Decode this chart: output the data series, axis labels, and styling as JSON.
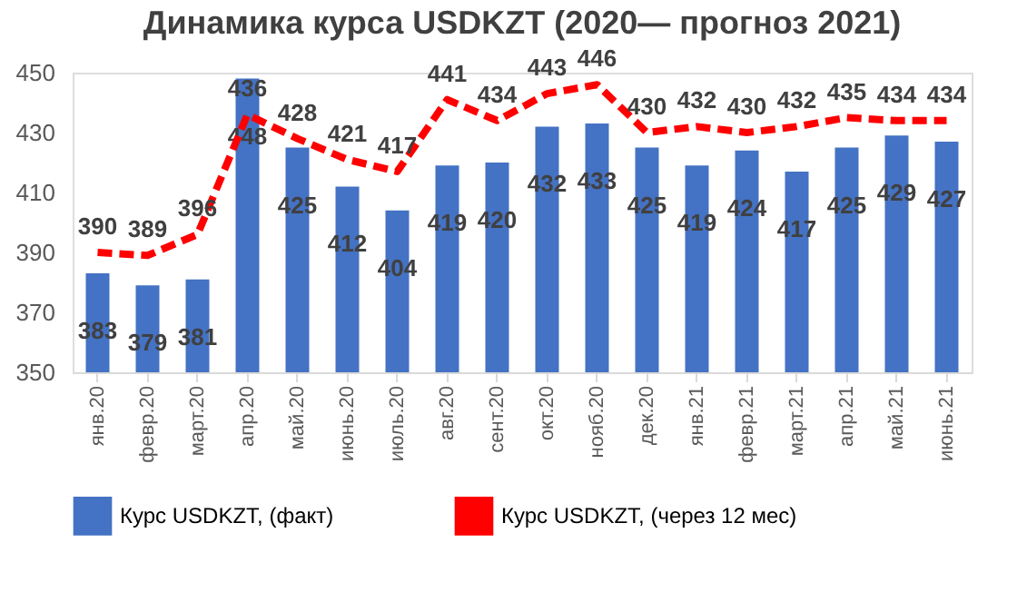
{
  "chart_data": {
    "type": "bar",
    "title": "Динамика курса USDKZT (2020— прогноз 2021)",
    "categories": [
      "янв.20",
      "февр.20",
      "март.20",
      "апр.20",
      "май.20",
      "июнь.20",
      "июль.20",
      "авг.20",
      "сент.20",
      "окт.20",
      "нояб.20",
      "дек.20",
      "янв.21",
      "февр.21",
      "март.21",
      "апр.21",
      "май.21",
      "июнь.21"
    ],
    "series": [
      {
        "name": "Курс USDKZT, (факт)",
        "type": "bar",
        "color": "#4472c4",
        "values": [
          383,
          379,
          381,
          448,
          425,
          412,
          404,
          419,
          420,
          432,
          433,
          425,
          419,
          424,
          417,
          425,
          429,
          427
        ]
      },
      {
        "name": "Курс USDKZT, (через 12 мес)",
        "type": "line",
        "color": "#ff0000",
        "line_style": "dashed",
        "values": [
          390,
          389,
          396,
          436,
          428,
          421,
          417,
          441,
          434,
          443,
          446,
          430,
          432,
          430,
          432,
          435,
          434,
          434
        ]
      }
    ],
    "ylim": [
      350,
      450
    ],
    "yticks": [
      350,
      370,
      390,
      410,
      430,
      450
    ],
    "grid": false,
    "legend": "bottom",
    "data_labels": true
  }
}
